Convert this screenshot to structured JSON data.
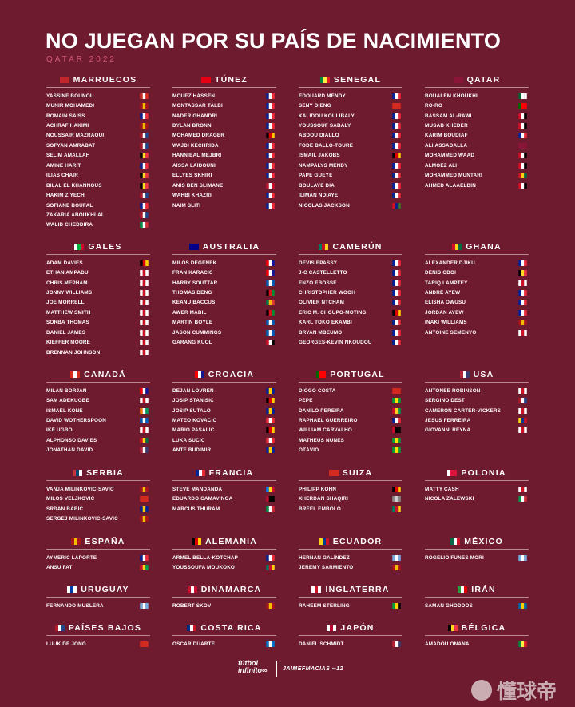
{
  "title": "NO JUEGAN POR SU PAÍS DE NACIMIENTO",
  "subtitle": "QATAR 2022",
  "footer": {
    "brand_line1": "fútbol",
    "brand_line2": "infinito∞",
    "credit": "JAIMEFMACIAS",
    "credit_badge": "∞12"
  },
  "watermark": "懂球帝",
  "flag_colors": {
    "MA": [
      "#c1272d",
      "#c1272d",
      "#c1272d"
    ],
    "CA": [
      "#d52b1e",
      "#ffffff",
      "#d52b1e"
    ],
    "ES": [
      "#aa151b",
      "#f1bf00",
      "#aa151b"
    ],
    "FR": [
      "#002395",
      "#ffffff",
      "#ed2939"
    ],
    "NL": [
      "#ae1c28",
      "#ffffff",
      "#21468b"
    ],
    "BE": [
      "#000000",
      "#fdda24",
      "#ef3340"
    ],
    "IT": [
      "#009246",
      "#ffffff",
      "#ce2b37"
    ],
    "TN": [
      "#e70013",
      "#e70013",
      "#e70013"
    ],
    "DE": [
      "#000000",
      "#dd0000",
      "#ffce00"
    ],
    "DK": [
      "#c8102e",
      "#ffffff",
      "#c8102e"
    ],
    "SN": [
      "#00853f",
      "#fdef42",
      "#e31b23"
    ],
    "CH": [
      "#d52b1e",
      "#d52b1e",
      "#d52b1e"
    ],
    "GM": [
      "#ce1126",
      "#0c1c8c",
      "#3a7728"
    ],
    "QA": [
      "#8a1538",
      "#8a1538",
      "#8a1538"
    ],
    "DZ": [
      "#006233",
      "#ffffff",
      "#ffffff"
    ],
    "PT": [
      "#006600",
      "#ff0000",
      "#ff0000"
    ],
    "EG": [
      "#ce1126",
      "#ffffff",
      "#000000"
    ],
    "TD": [
      "#002664",
      "#fecb00",
      "#c60c30"
    ],
    "GH": [
      "#ce1126",
      "#fcd116",
      "#006b3f"
    ],
    "WA": [
      "#ffffff",
      "#00b140",
      "#d30731"
    ],
    "EN": [
      "#ffffff",
      "#ce1124",
      "#ffffff"
    ],
    "AU": [
      "#00008b",
      "#00008b",
      "#00008b"
    ],
    "HR": [
      "#ff0000",
      "#ffffff",
      "#171796"
    ],
    "SC": [
      "#005eb8",
      "#ffffff",
      "#005eb8"
    ],
    "ZA": [
      "#007a4d",
      "#ffb612",
      "#de3831"
    ],
    "SS": [
      "#000000",
      "#da121a",
      "#078930"
    ],
    "CM": [
      "#007a5e",
      "#ce1126",
      "#fcd116"
    ],
    "CD": [
      "#007fff",
      "#f7d618",
      "#ce1021"
    ],
    "CI": [
      "#f77f00",
      "#ffffff",
      "#009e60"
    ],
    "US": [
      "#b22234",
      "#ffffff",
      "#3c3b6e"
    ],
    "BA": [
      "#002395",
      "#fecb00",
      "#002395"
    ],
    "AT": [
      "#ed2939",
      "#ffffff",
      "#ed2939"
    ],
    "BR": [
      "#009c3b",
      "#ffdf00",
      "#009c3b"
    ],
    "CO": [
      "#fcd116",
      "#003893",
      "#ce1126"
    ],
    "RS": [
      "#c6363c",
      "#0c4076",
      "#ffffff"
    ],
    "AO": [
      "#cc092f",
      "#000000",
      "#000000"
    ],
    "PL": [
      "#ffffff",
      "#dc143c",
      "#dc143c"
    ],
    "MX": [
      "#006847",
      "#ffffff",
      "#ce1126"
    ],
    "AR": [
      "#74acdf",
      "#ffffff",
      "#74acdf"
    ],
    "GW": [
      "#ce1126",
      "#fcd116",
      "#009e49"
    ],
    "UY": [
      "#ffffff",
      "#0038a8",
      "#ffffff"
    ],
    "SE": [
      "#006aa7",
      "#fecc00",
      "#006aa7"
    ],
    "JM": [
      "#009b3a",
      "#fed100",
      "#000000"
    ],
    "IR": [
      "#239f40",
      "#ffffff",
      "#da0000"
    ],
    "CR": [
      "#002b7f",
      "#ffffff",
      "#ce1126"
    ],
    "HN": [
      "#0073cf",
      "#ffffff",
      "#0073cf"
    ],
    "JP": [
      "#ffffff",
      "#bc002d",
      "#ffffff"
    ],
    "CV": [
      "#003893",
      "#ffffff",
      "#cf2027"
    ],
    "GN": [
      "#ce1126",
      "#fcd116",
      "#009460"
    ]
  },
  "teams": [
    {
      "name": "MARRUECOS",
      "flag": "MA",
      "players": [
        {
          "name": "YASSINE BOUNOU",
          "flag": "CA"
        },
        {
          "name": "MUNIR MOHAMEDI",
          "flag": "ES"
        },
        {
          "name": "ROMAIN SAÏSS",
          "flag": "FR"
        },
        {
          "name": "ACHRAF HAKIMI",
          "flag": "ES"
        },
        {
          "name": "NOUSSAIR MAZRAOUI",
          "flag": "NL"
        },
        {
          "name": "SOFYAN AMRABAT",
          "flag": "NL"
        },
        {
          "name": "SELIM AMALLAH",
          "flag": "BE"
        },
        {
          "name": "AMINE HARIT",
          "flag": "FR"
        },
        {
          "name": "ILIAS CHAIR",
          "flag": "BE"
        },
        {
          "name": "BILAL EL KHANNOUS",
          "flag": "BE"
        },
        {
          "name": "HAKIM ZIYECH",
          "flag": "NL"
        },
        {
          "name": "SOFIANE BOUFAL",
          "flag": "FR"
        },
        {
          "name": "ZAKARIA ABOUKHLAL",
          "flag": "NL"
        },
        {
          "name": "WALID CHEDDIRA",
          "flag": "IT"
        }
      ]
    },
    {
      "name": "TÚNEZ",
      "flag": "TN",
      "players": [
        {
          "name": "MOUEZ HASSEN",
          "flag": "FR"
        },
        {
          "name": "MONTASSAR TALBI",
          "flag": "FR"
        },
        {
          "name": "NADER GHANDRI",
          "flag": "FR"
        },
        {
          "name": "DYLAN BRONN",
          "flag": "FR"
        },
        {
          "name": "MOHAMED DRÄGER",
          "flag": "DE"
        },
        {
          "name": "WAJDI KECHRIDA",
          "flag": "FR"
        },
        {
          "name": "HANNIBAL MEJBRI",
          "flag": "FR"
        },
        {
          "name": "AÏSSA LAÏDOUNI",
          "flag": "FR"
        },
        {
          "name": "ELLYES SKHIRI",
          "flag": "FR"
        },
        {
          "name": "ANIS BEN SLIMANE",
          "flag": "DK"
        },
        {
          "name": "WAHBI KHAZRI",
          "flag": "FR"
        },
        {
          "name": "NAÏM SLITI",
          "flag": "FR"
        }
      ]
    },
    {
      "name": "SENEGAL",
      "flag": "SN",
      "players": [
        {
          "name": "ÉDOUARD MENDY",
          "flag": "FR"
        },
        {
          "name": "SENY DIENG",
          "flag": "CH"
        },
        {
          "name": "KALIDOU KOULIBALY",
          "flag": "FR"
        },
        {
          "name": "YOUSSOUF SABALY",
          "flag": "FR"
        },
        {
          "name": "ABDOU DIALLO",
          "flag": "FR"
        },
        {
          "name": "FODÉ BALLO-TOURÉ",
          "flag": "FR"
        },
        {
          "name": "ISMAIL JAKOBS",
          "flag": "DE"
        },
        {
          "name": "NAMPALYS MENDY",
          "flag": "FR"
        },
        {
          "name": "PAPE GUEYE",
          "flag": "FR"
        },
        {
          "name": "BOULAYE DIA",
          "flag": "FR"
        },
        {
          "name": "ILIMAN NDIAYE",
          "flag": "FR"
        },
        {
          "name": "NICOLAS JACKSON",
          "flag": "GM"
        }
      ]
    },
    {
      "name": "QATAR",
      "flag": "QA",
      "players": [
        {
          "name": "BOUALEM KHOUKHI",
          "flag": "DZ"
        },
        {
          "name": "RÓ-RÓ",
          "flag": "PT"
        },
        {
          "name": "BASSAM AL-RAWI",
          "flag": "EG"
        },
        {
          "name": "MUSAB KHEDER",
          "flag": "EG"
        },
        {
          "name": "KARIM BOUDIAF",
          "flag": "FR"
        },
        {
          "name": "ALI ASSADALLA",
          "flag": "QA"
        },
        {
          "name": "MOHAMMED WAAD",
          "flag": "EG"
        },
        {
          "name": "ALMOEZ ALI",
          "flag": "EG"
        },
        {
          "name": "MOHAMMED MUNTARI",
          "flag": "GH"
        },
        {
          "name": "AHMED ALAAELDIN",
          "flag": "EG"
        }
      ]
    },
    {
      "name": "GALES",
      "flag": "WA",
      "players": [
        {
          "name": "ADAM DAVIES",
          "flag": "DE"
        },
        {
          "name": "ETHAN AMPADU",
          "flag": "EN"
        },
        {
          "name": "CHRIS MEPHAM",
          "flag": "EN"
        },
        {
          "name": "JONNY WILLIAMS",
          "flag": "EN"
        },
        {
          "name": "JOE MORRELL",
          "flag": "EN"
        },
        {
          "name": "MATTHEW SMITH",
          "flag": "EN"
        },
        {
          "name": "SORBA THOMAS",
          "flag": "EN"
        },
        {
          "name": "DANIEL JAMES",
          "flag": "EN"
        },
        {
          "name": "KIEFFER MOORE",
          "flag": "EN"
        },
        {
          "name": "BRENNAN JOHNSON",
          "flag": "EN"
        }
      ]
    },
    {
      "name": "AUSTRALIA",
      "flag": "AU",
      "players": [
        {
          "name": "MILOŠ DEGENEK",
          "flag": "HR"
        },
        {
          "name": "FRAN KARAČIĆ",
          "flag": "HR"
        },
        {
          "name": "HARRY SOUTTAR",
          "flag": "SC"
        },
        {
          "name": "THOMAS DENG",
          "flag": "SS"
        },
        {
          "name": "KEANU BACCUS",
          "flag": "ZA"
        },
        {
          "name": "AWER MABIL",
          "flag": "SS"
        },
        {
          "name": "MARTIN BOYLE",
          "flag": "SC"
        },
        {
          "name": "JASON CUMMINGS",
          "flag": "SC"
        },
        {
          "name": "GARANG KUOL",
          "flag": "EG"
        }
      ]
    },
    {
      "name": "CAMERÚN",
      "flag": "CM",
      "players": [
        {
          "name": "DEVIS EPASSY",
          "flag": "FR"
        },
        {
          "name": "J-C CASTELLETTO",
          "flag": "FR"
        },
        {
          "name": "ENZO EBOSSE",
          "flag": "FR"
        },
        {
          "name": "CHRISTOPHER WOOH",
          "flag": "FR"
        },
        {
          "name": "OLIVIER NTCHAM",
          "flag": "FR"
        },
        {
          "name": "ERIC M. CHOUPO-MOTING",
          "flag": "DE"
        },
        {
          "name": "KARL TOKO EKAMBI",
          "flag": "FR"
        },
        {
          "name": "BRYAN MBEUMO",
          "flag": "FR"
        },
        {
          "name": "GEORGES-KÉVIN NKOUDOU",
          "flag": "FR"
        }
      ]
    },
    {
      "name": "GHANA",
      "flag": "GH",
      "players": [
        {
          "name": "ALEXANDER DJIKU",
          "flag": "FR"
        },
        {
          "name": "DENIS ODOI",
          "flag": "BE"
        },
        {
          "name": "TARIQ LAMPTEY",
          "flag": "EN"
        },
        {
          "name": "ANDRÉ AYEW",
          "flag": "FR"
        },
        {
          "name": "ELISHA OWUSU",
          "flag": "FR"
        },
        {
          "name": "JORDAN AYEW",
          "flag": "FR"
        },
        {
          "name": "IÑAKI WILLIAMS",
          "flag": "ES"
        },
        {
          "name": "ANTOINE SEMENYO",
          "flag": "EN"
        }
      ]
    },
    {
      "name": "CANADÁ",
      "flag": "CA",
      "players": [
        {
          "name": "MILAN BORJAN",
          "flag": "HR"
        },
        {
          "name": "SAM ADEKUGBE",
          "flag": "EN"
        },
        {
          "name": "ISMAËL KONÉ",
          "flag": "CI"
        },
        {
          "name": "DAVID WOTHERSPOON",
          "flag": "SC"
        },
        {
          "name": "IKÉ UGBO",
          "flag": "EN"
        },
        {
          "name": "ALPHONSO DAVIES",
          "flag": "GH"
        },
        {
          "name": "JONATHAN DAVID",
          "flag": "US"
        }
      ]
    },
    {
      "name": "CROACIA",
      "flag": "HR",
      "players": [
        {
          "name": "DEJAN LOVREN",
          "flag": "BA"
        },
        {
          "name": "JOSIP STANIŠIĆ",
          "flag": "DE"
        },
        {
          "name": "JOSIP ŠUTALO",
          "flag": "BA"
        },
        {
          "name": "MATEO KOVAČIĆ",
          "flag": "AT"
        },
        {
          "name": "MARIO PAŠALIĆ",
          "flag": "DE"
        },
        {
          "name": "LUKA SUČIĆ",
          "flag": "AT"
        },
        {
          "name": "ANTE BUDIMIR",
          "flag": "BA"
        }
      ]
    },
    {
      "name": "PORTUGAL",
      "flag": "PT",
      "players": [
        {
          "name": "DIOGO COSTA",
          "flag": "CH"
        },
        {
          "name": "PEPE",
          "flag": "BR"
        },
        {
          "name": "DANILO PEREIRA",
          "flag": "GW"
        },
        {
          "name": "RAPHAËL GUERREIRO",
          "flag": "FR"
        },
        {
          "name": "WILLIAM CARVALHO",
          "flag": "AO"
        },
        {
          "name": "MATHEUS NUNES",
          "flag": "BR"
        },
        {
          "name": "OTÁVIO",
          "flag": "BR"
        }
      ]
    },
    {
      "name": "USA",
      "flag": "US",
      "players": [
        {
          "name": "ANTONEE ROBINSON",
          "flag": "EN"
        },
        {
          "name": "SERGIÑO DEST",
          "flag": "NL"
        },
        {
          "name": "CAMERON CARTER-VICKERS",
          "flag": "EN"
        },
        {
          "name": "JESÚS FERREIRA",
          "flag": "CO"
        },
        {
          "name": "GIOVANNI REYNA",
          "flag": "EN"
        }
      ]
    },
    {
      "name": "SERBIA",
      "flag": "RS",
      "players": [
        {
          "name": "VANJA MILINKOVIĆ-SAVIĆ",
          "flag": "ES"
        },
        {
          "name": "MILOŠ VELJKOVIĆ",
          "flag": "CH"
        },
        {
          "name": "SRĐAN BABIĆ",
          "flag": "BA"
        },
        {
          "name": "SERGEJ MILINKOVIĆ-SAVIĆ",
          "flag": "ES"
        }
      ]
    },
    {
      "name": "FRANCIA",
      "flag": "FR",
      "players": [
        {
          "name": "STEVE MANDANDA",
          "flag": "CD"
        },
        {
          "name": "EDUARDO CAMAVINGA",
          "flag": "AO"
        },
        {
          "name": "MARCUS THURAM",
          "flag": "IT"
        }
      ]
    },
    {
      "name": "SUIZA",
      "flag": "CH",
      "players": [
        {
          "name": "PHILIPP KÖHN",
          "flag": "DE"
        },
        {
          "name": "XHERDAN SHAQIRI",
          "flag": "KO"
        },
        {
          "name": "BREEL EMBOLO",
          "flag": "CM"
        }
      ]
    },
    {
      "name": "POLONIA",
      "flag": "PL",
      "players": [
        {
          "name": "MATTY CASH",
          "flag": "EN"
        },
        {
          "name": "NICOLA ZALEWSKI",
          "flag": "IT"
        }
      ]
    },
    {
      "name": "ESPAÑA",
      "flag": "ES",
      "players": [
        {
          "name": "AYMERIC LAPORTE",
          "flag": "FR"
        },
        {
          "name": "ANSU FATI",
          "flag": "GW"
        }
      ]
    },
    {
      "name": "ALEMANIA",
      "flag": "DE",
      "players": [
        {
          "name": "ARMEL BELLA-KOTCHAP",
          "flag": "FR"
        },
        {
          "name": "YOUSSOUFA MOUKOKO",
          "flag": "CM"
        }
      ]
    },
    {
      "name": "ECUADOR",
      "flag": "CO",
      "players": [
        {
          "name": "HERNÁN GALÍNDEZ",
          "flag": "AR"
        },
        {
          "name": "JEREMY SARMIENTO",
          "flag": "ES"
        }
      ]
    },
    {
      "name": "MÉXICO",
      "flag": "MX",
      "players": [
        {
          "name": "ROGELIO FUNES MORI",
          "flag": "AR"
        }
      ]
    },
    {
      "name": "URUGUAY",
      "flag": "UY",
      "players": [
        {
          "name": "FERNANDO MUSLERA",
          "flag": "AR"
        }
      ]
    },
    {
      "name": "DINAMARCA",
      "flag": "DK",
      "players": [
        {
          "name": "ROBERT SKOV",
          "flag": "ES"
        }
      ]
    },
    {
      "name": "INGLATERRA",
      "flag": "EN",
      "players": [
        {
          "name": "RAHEEM STERLING",
          "flag": "JM"
        }
      ]
    },
    {
      "name": "IRÁN",
      "flag": "IR",
      "players": [
        {
          "name": "SAMAN GHODDOS",
          "flag": "SE"
        }
      ]
    },
    {
      "name": "PAÍSES BAJOS",
      "flag": "NL",
      "players": [
        {
          "name": "LUUK DE JONG",
          "flag": "CH"
        }
      ]
    },
    {
      "name": "COSTA RICA",
      "flag": "CR",
      "players": [
        {
          "name": "ÓSCAR DUARTE",
          "flag": "HN"
        }
      ]
    },
    {
      "name": "JAPÓN",
      "flag": "JP",
      "players": [
        {
          "name": "DANIEL SCHMIDT",
          "flag": "US"
        }
      ]
    },
    {
      "name": "BÉLGICA",
      "flag": "BE",
      "players": [
        {
          "name": "AMADOU ONANA",
          "flag": "SN"
        }
      ]
    }
  ]
}
